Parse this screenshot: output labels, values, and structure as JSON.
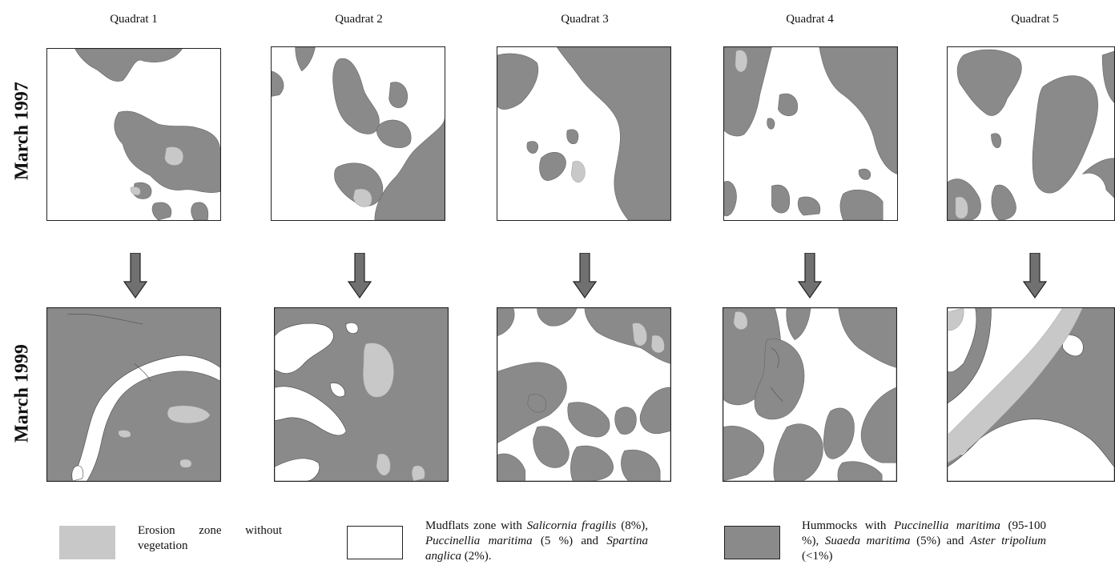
{
  "columns": [
    "Quadrat 1",
    "Quadrat 2",
    "Quadrat 3",
    "Quadrat 4",
    "Quadrat 5"
  ],
  "rows": [
    "March 1997",
    "March 1999"
  ],
  "colors": {
    "hummock": "#8a8a8a",
    "erosion": "#c8c8c8",
    "mudflat": "#ffffff",
    "arrow": "#707070",
    "border": "#222222"
  },
  "legend": {
    "erosion": {
      "text": "Erosion zone without vegetation"
    },
    "mudflat": {
      "p1": "Mudflats zone with ",
      "sp1": "Salicornia fragilis",
      "p2": " (8%), ",
      "sp2": "Puccinellia maritima",
      "p3": " (5 %) and ",
      "sp3": "Spartina anglica",
      "p4": " (2%)."
    },
    "hummock": {
      "p1": "Hummocks with ",
      "sp1": "Puccinellia maritima",
      "p2": " (95-100 %), ",
      "sp2": "Suaeda maritima",
      "p3": " (5%) and ",
      "sp3": "Aster tripolium",
      "p4": " (<1%)"
    }
  }
}
